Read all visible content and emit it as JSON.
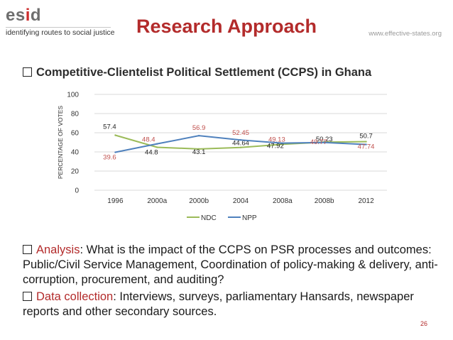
{
  "header": {
    "logo_text_prefix": "es",
    "logo_text_accent": "i",
    "logo_text_suffix": "d",
    "tagline": "identifying routes to social justice",
    "title": "Research Approach",
    "website": "www.effective-states.org"
  },
  "heading": {
    "text": "Competitive-Clientelist Political Settlement (CCPS) in Ghana"
  },
  "bullets": {
    "analysis_label": "Analysis",
    "analysis_text": ": What is the impact of the CCPS on PSR processes and outcomes: Public/Civil Service Management, Coordination of policy-making & delivery, anti-corruption, procurement, and auditing?",
    "data_label": "Data collection",
    "data_text": ": Interviews, surveys, parliamentary Hansards, newspaper reports and other secondary sources."
  },
  "footer": {
    "page_number": "26"
  },
  "colors": {
    "accent": "#b32b2b",
    "ndc_line": "#9bbb59",
    "npp_line": "#4f81bd",
    "ndc_label": "#222222",
    "npp_label": "#c0504d",
    "grid": "#d9d9d9"
  },
  "chart_data": {
    "type": "line",
    "title": "",
    "xlabel": "",
    "ylabel": "PERCENTAGE OF VOTES",
    "categories": [
      "1996",
      "2000a",
      "2000b",
      "2004",
      "2008a",
      "2008b",
      "2012"
    ],
    "ylim": [
      0,
      100
    ],
    "yticks": [
      0,
      20,
      40,
      60,
      80,
      100
    ],
    "grid": true,
    "legend": "bottom",
    "series": [
      {
        "name": "NDC",
        "values": [
          57.4,
          44.8,
          43.1,
          44.64,
          47.92,
          50.23,
          50.7
        ],
        "labels": [
          "57.4",
          "44.8",
          "43.1",
          "44.64",
          "47.92",
          "50.23",
          "50.7"
        ]
      },
      {
        "name": "NPP",
        "values": [
          39.6,
          48.4,
          56.9,
          52.45,
          49.13,
          49.77,
          47.74
        ],
        "labels": [
          "39.6",
          "48.4",
          "56.9",
          "52.45",
          "49.13",
          "49.77",
          "47.74"
        ]
      }
    ]
  }
}
